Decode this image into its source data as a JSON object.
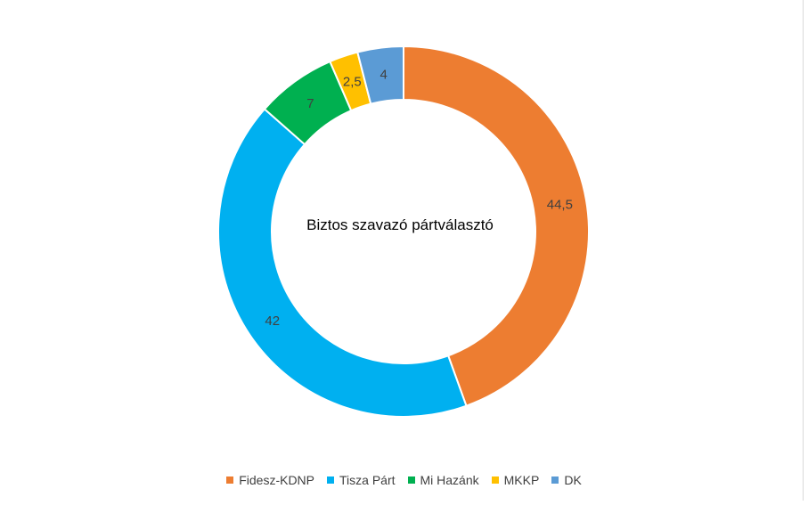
{
  "chart_data": {
    "type": "pie",
    "variant": "donut",
    "title": "Biztos szavazó pártválasztó",
    "categories": [
      "Fidesz-KDNP",
      "Tisza Párt",
      "Mi Hazánk",
      "MKKP",
      "DK"
    ],
    "values": [
      44.5,
      42,
      7,
      2.5,
      4
    ],
    "value_labels": [
      "44,5",
      "42",
      "7",
      "2,5",
      "4"
    ],
    "colors": [
      "#ED7D31",
      "#00B0F0",
      "#00B050",
      "#FFC000",
      "#5B9BD5"
    ],
    "legend_position": "bottom",
    "start_angle": "top, clockwise"
  }
}
